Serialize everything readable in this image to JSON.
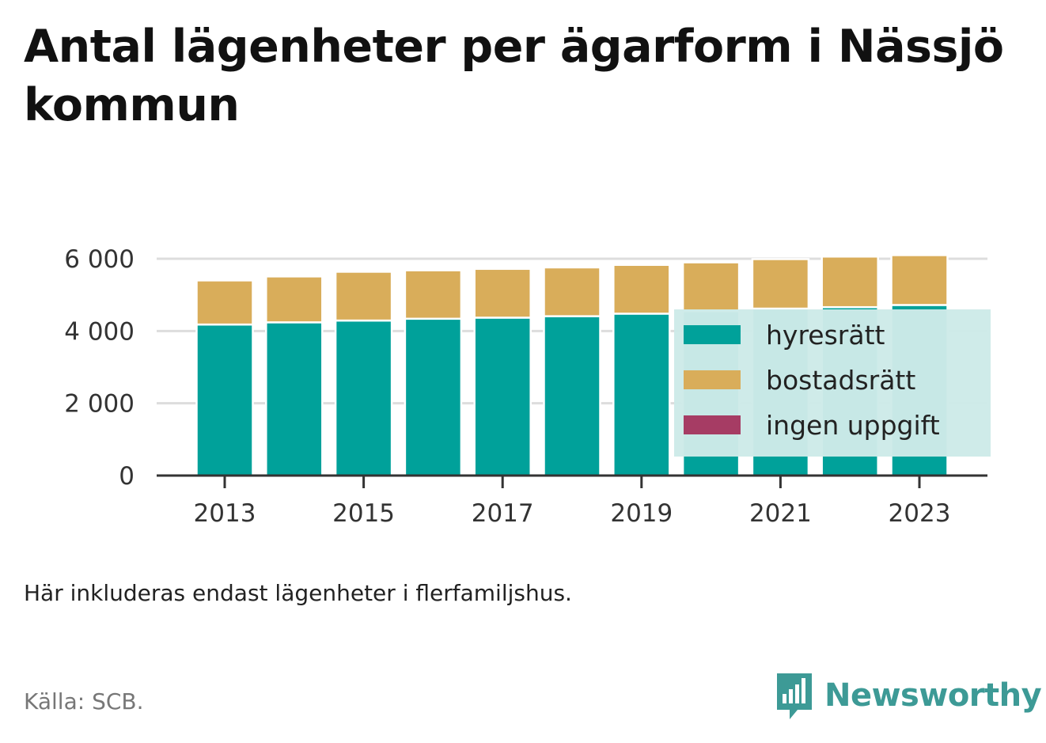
{
  "title": "Antal lägenheter per ägarform i Nässjö kommun",
  "note": "Här inkluderas endast lägenheter i flerfamiljshus.",
  "source": "Källa: SCB.",
  "brand": "Newsworthy",
  "colors": {
    "hyresratt": "#00a19a",
    "bostadsratt": "#d9ad5a",
    "ingen_uppgift": "#a63c64",
    "legend_bg": "#cdeae8",
    "grid": "#dddddd",
    "axis": "#333333",
    "brand": "#3d9a96"
  },
  "chart_data": {
    "type": "bar",
    "stacked": true,
    "title": "Antal lägenheter per ägarform i Nässjö kommun",
    "xlabel": "",
    "ylabel": "",
    "ylim": [
      0,
      6000
    ],
    "y_ticks": [
      0,
      2000,
      4000,
      6000
    ],
    "y_tick_labels": [
      "0",
      "2 000",
      "4 000",
      "6 000"
    ],
    "categories": [
      "2013",
      "2014",
      "2015",
      "2016",
      "2017",
      "2018",
      "2019",
      "2020",
      "2021",
      "2022",
      "2023"
    ],
    "x_tick_labels": [
      "2013",
      "2015",
      "2017",
      "2019",
      "2021",
      "2023"
    ],
    "grid": true,
    "legend_position": "bottom-right inside plot",
    "series": [
      {
        "name": "hyresrätt",
        "color": "#00a19a",
        "values": [
          4180,
          4240,
          4290,
          4340,
          4370,
          4410,
          4480,
          4550,
          4620,
          4660,
          4720
        ]
      },
      {
        "name": "bostadsrätt",
        "color": "#d9ad5a",
        "values": [
          1220,
          1270,
          1350,
          1340,
          1350,
          1350,
          1350,
          1350,
          1370,
          1400,
          1380
        ]
      },
      {
        "name": "ingen uppgift",
        "color": "#a63c64",
        "values": [
          0,
          0,
          0,
          0,
          0,
          0,
          0,
          0,
          0,
          0,
          0
        ]
      }
    ]
  }
}
